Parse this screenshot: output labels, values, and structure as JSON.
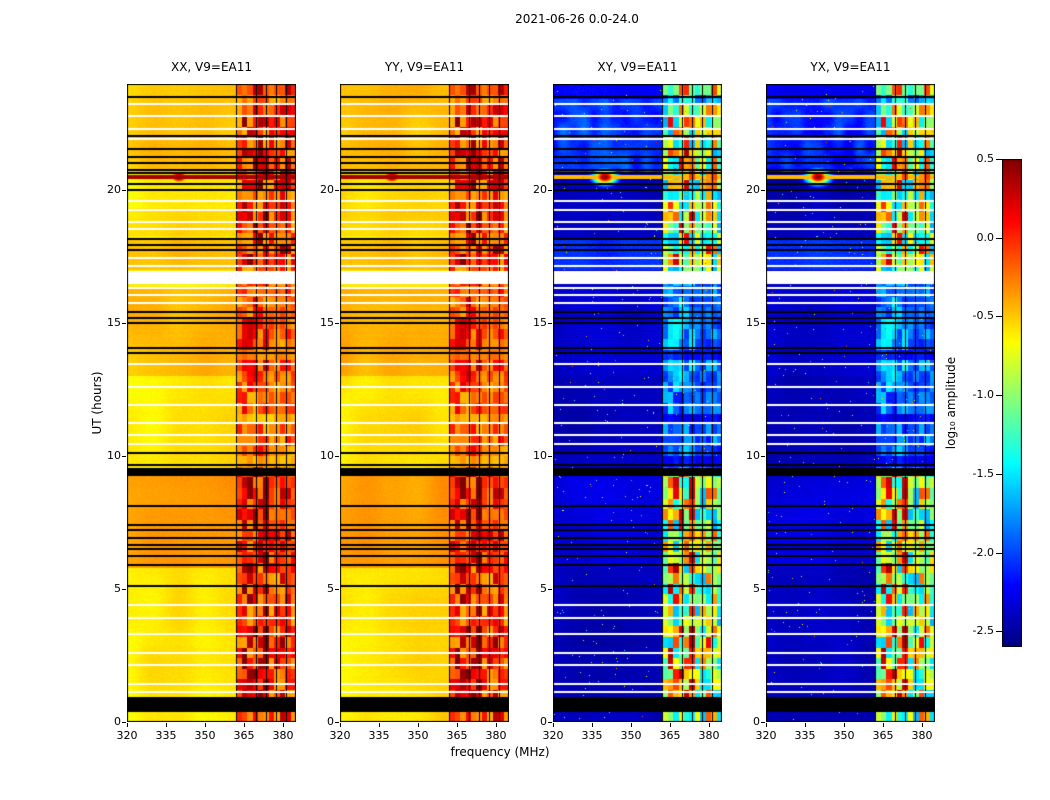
{
  "chart_data": {
    "type": "heatmap",
    "title": "2021-06-26 0.0-24.0",
    "xlabel": "frequency (MHz)",
    "ylabel": "UT (hours)",
    "value_label": "log₁₀ amplitude",
    "colormap": "jet",
    "x_range": [
      320,
      385
    ],
    "y_range": [
      0,
      24
    ],
    "x_ticks": [
      320,
      335,
      350,
      365,
      380
    ],
    "x_tick_labels": [
      "320",
      "335",
      "350",
      "365",
      "380"
    ],
    "y_ticks": [
      0,
      5,
      10,
      15,
      20
    ],
    "y_tick_labels": [
      "0",
      "5",
      "10",
      "15",
      "20"
    ],
    "value_range": [
      -2.6,
      0.5
    ],
    "colorbar_ticks": [
      0.5,
      0.0,
      -0.5,
      -1.0,
      -1.5,
      -2.0,
      -2.5
    ],
    "colorbar_tick_labels": [
      "0.5",
      "0.0",
      "-0.5",
      "-1.0",
      "-1.5",
      "-2.0",
      "-2.5"
    ],
    "panels": [
      {
        "title": "XX, V9=EA11",
        "pol": "XX",
        "kind": "parallel",
        "base_level": -0.62,
        "seed": 11
      },
      {
        "title": "YY, V9=EA11",
        "pol": "YY",
        "kind": "parallel",
        "base_level": -0.6,
        "seed": 23
      },
      {
        "title": "XY, V9=EA11",
        "pol": "XY",
        "kind": "cross",
        "base_level": -2.42,
        "seed": 37
      },
      {
        "title": "YX, V9=EA11",
        "pol": "YX",
        "kind": "cross",
        "base_level": -2.42,
        "seed": 51
      }
    ],
    "features": {
      "rfi_band_mhz": [
        362,
        385
      ],
      "rfi_block_freq_mhz": 2.1,
      "rfi_block_time_hr": 0.4,
      "rfi_gap_channels_mhz": [
        362.0,
        369.5,
        373.4,
        377.3,
        381.2
      ],
      "burst": {
        "time_hr": 20.5,
        "peak_freq_mhz": 340,
        "peak_value": 0.5
      },
      "warm_time_bands_hr": [
        [
          5.8,
          9.5,
          0.22,
          0.1
        ],
        [
          13.0,
          16.3,
          0.16,
          0.05
        ],
        [
          17.0,
          18.2,
          0.12,
          0.35
        ],
        [
          18.3,
          19.35,
          0.05,
          0.0
        ],
        [
          20.6,
          24.0,
          0.12,
          0.18
        ]
      ],
      "flagged_black_times_hr": [
        23.55,
        22.1,
        21.6,
        21.3,
        21.05,
        20.8,
        20.68,
        20.28,
        20.05,
        18.2,
        18.0,
        17.8,
        15.45,
        15.25,
        15.05,
        14.1,
        13.9,
        10.15,
        9.7,
        8.15,
        7.45,
        7.25,
        6.95,
        6.7,
        6.55,
        6.3,
        5.95,
        5.15,
        0.95
      ],
      "flagged_black_bands_hr": [
        [
          9.3,
          9.55
        ],
        [
          0.4,
          0.85
        ]
      ],
      "flagged_white_times_hr": [
        23.3,
        22.85,
        22.35,
        21.95,
        19.65,
        19.3,
        18.85,
        18.6,
        17.5,
        17.2,
        16.35,
        16.1,
        15.8,
        13.5,
        12.65,
        11.95,
        11.3,
        10.85,
        10.5,
        4.45,
        3.95,
        3.35,
        2.65,
        2.2,
        1.45,
        1.15
      ],
      "flagged_white_bands_hr": [
        [
          16.5,
          16.95
        ]
      ]
    }
  }
}
